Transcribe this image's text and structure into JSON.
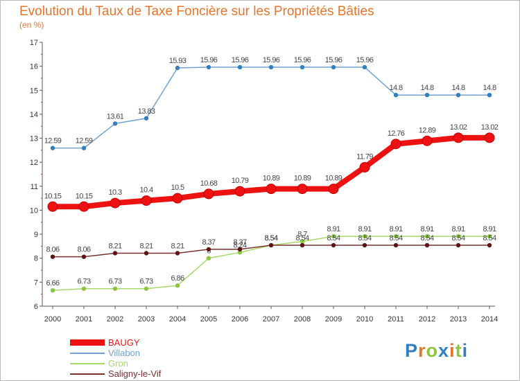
{
  "title": "Evolution du Taux de Taxe Foncière sur les Propriétés Bâties",
  "subtitle": "(en %)",
  "logo": {
    "letters": [
      "P",
      "r",
      "o",
      "x",
      "i",
      "t",
      "i"
    ],
    "colors": [
      "#2f7fc1",
      "#e8742a",
      "#8cc63f",
      "#2f7fc1",
      "#e8742a",
      "#8cc63f",
      "#2f7fc1"
    ]
  },
  "chart_data": {
    "type": "line",
    "x": [
      "2000",
      "2001",
      "2002",
      "2003",
      "2004",
      "2005",
      "2006",
      "2007",
      "2008",
      "2009",
      "2010",
      "2011",
      "2012",
      "2013",
      "2014"
    ],
    "ylim": [
      6,
      17
    ],
    "yticks": [
      "6",
      "7",
      "8",
      "9",
      "10",
      "11",
      "12",
      "13",
      "14",
      "15",
      "16",
      "17"
    ],
    "grid": false,
    "legend_position": "bottom-left",
    "series": [
      {
        "name": "Villabon",
        "color": "#6fa2d1",
        "point_color": "#2f7fc1",
        "values": [
          12.59,
          12.59,
          13.61,
          13.83,
          15.93,
          15.96,
          15.96,
          15.96,
          15.96,
          15.96,
          15.96,
          14.8,
          14.8,
          14.8,
          14.8
        ],
        "labels": [
          "12.59",
          "12.59",
          "13.61",
          "13.83",
          "15.93",
          "15.96",
          "15.96",
          "15.96",
          "15.96",
          "15.96",
          "15.96",
          "14.8",
          "14.8",
          "14.8",
          "14.8"
        ]
      },
      {
        "name": "Gron",
        "color": "#a6d96a",
        "point_color": "#8cc63f",
        "values": [
          6.66,
          6.73,
          6.73,
          6.73,
          6.86,
          8.0,
          8.24,
          8.54,
          8.7,
          8.91,
          8.91,
          8.91,
          8.91,
          8.91,
          8.91
        ],
        "labels": [
          "6.66",
          "6.73",
          "6.73",
          "6.73",
          "6.86",
          "8",
          "8.24",
          "8.54",
          "8.7",
          "8.91",
          "8.91",
          "8.91",
          "8.91",
          "8.91",
          "8.91"
        ]
      },
      {
        "name": "Saligny-le-Vif",
        "color": "#7a2f2f",
        "point_color": "#5c1414",
        "values": [
          8.06,
          8.06,
          8.21,
          8.21,
          8.21,
          8.37,
          8.37,
          8.54,
          8.54,
          8.54,
          8.54,
          8.54,
          8.54,
          8.54,
          8.54
        ],
        "labels": [
          "8.06",
          "8.06",
          "8.21",
          "8.21",
          "8.21",
          "8.37",
          "8.37",
          "8.54",
          "8.54",
          "8.54",
          "8.54",
          "8.54",
          "8.54",
          "8.54",
          "8.54"
        ]
      },
      {
        "name": "BAUGY",
        "color": "#ee1111",
        "point_color": "#ee1111",
        "values": [
          10.15,
          10.15,
          10.3,
          10.4,
          10.5,
          10.68,
          10.79,
          10.89,
          10.89,
          10.89,
          11.79,
          12.76,
          12.89,
          13.02,
          13.02
        ],
        "labels": [
          "10.15",
          "10.15",
          "10.3",
          "10.4",
          "10.5",
          "10.68",
          "10.79",
          "10.89",
          "10.89",
          "10.89",
          "11.79",
          "12.76",
          "12.89",
          "13.02",
          "13.02"
        ]
      }
    ],
    "legend": [
      {
        "name": "BAUGY",
        "color": "#ee1111"
      },
      {
        "name": "Villabon",
        "color": "#6fa2d1"
      },
      {
        "name": "Gron",
        "color": "#a6d96a"
      },
      {
        "name": "Saligny-le-Vif",
        "color": "#7a2f2f"
      }
    ]
  }
}
